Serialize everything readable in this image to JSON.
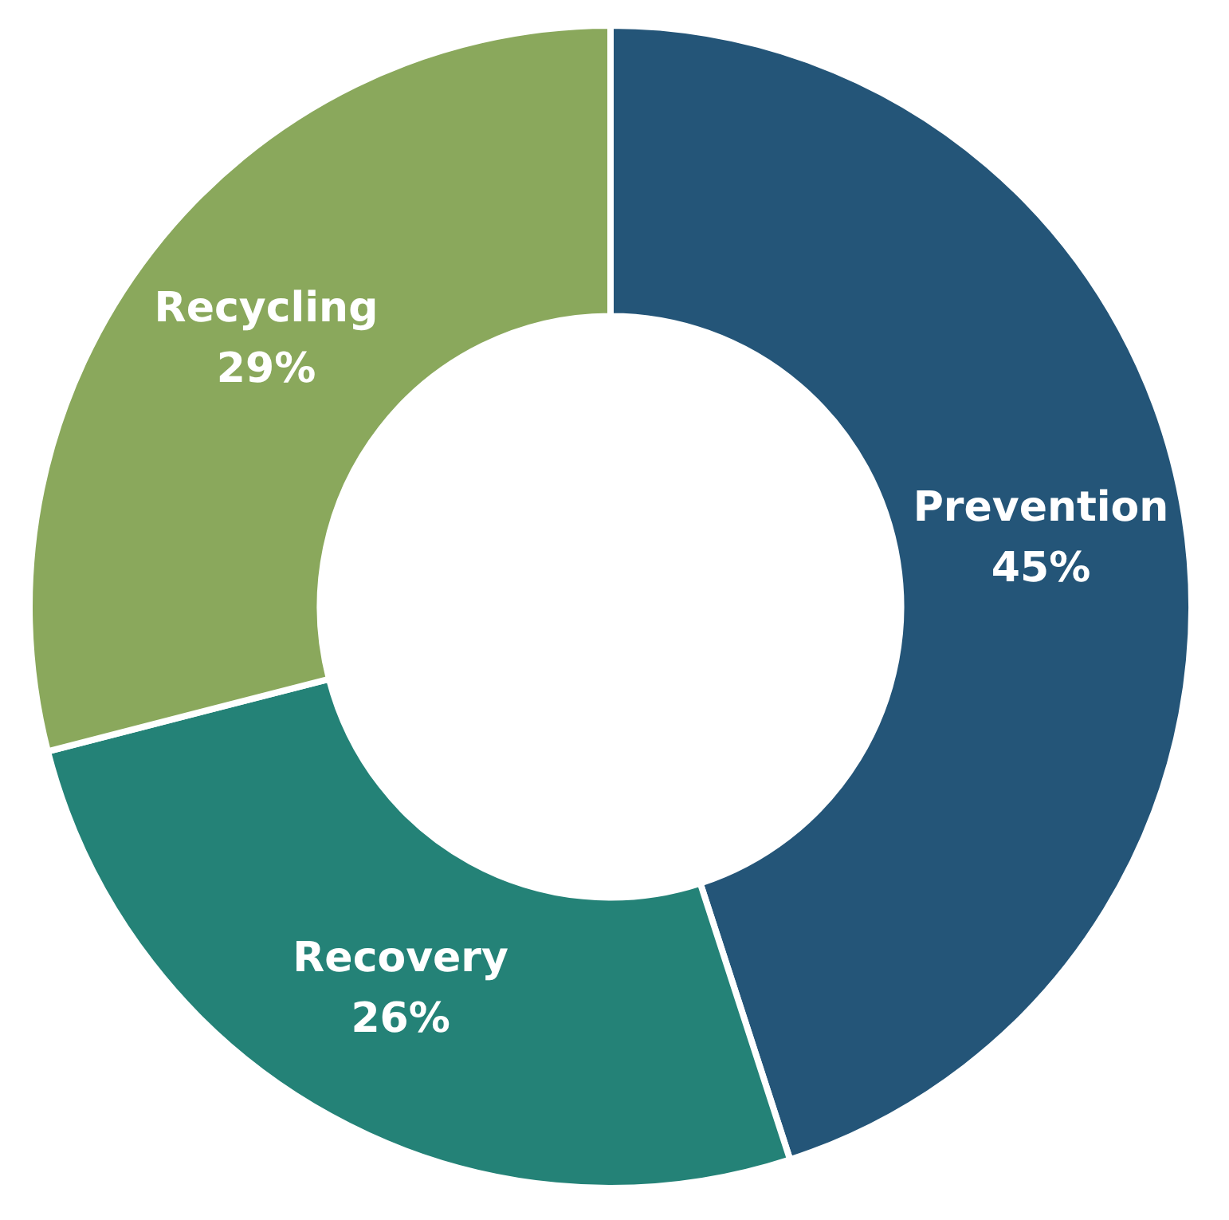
{
  "chart_data": {
    "type": "donut",
    "categories": [
      "Prevention",
      "Recovery",
      "Recycling"
    ],
    "values": [
      45,
      26,
      29
    ],
    "colors": [
      "#245578",
      "#248277",
      "#8aa85c"
    ],
    "value_labels": [
      "45%",
      "26%",
      "29%"
    ],
    "legend": false
  }
}
